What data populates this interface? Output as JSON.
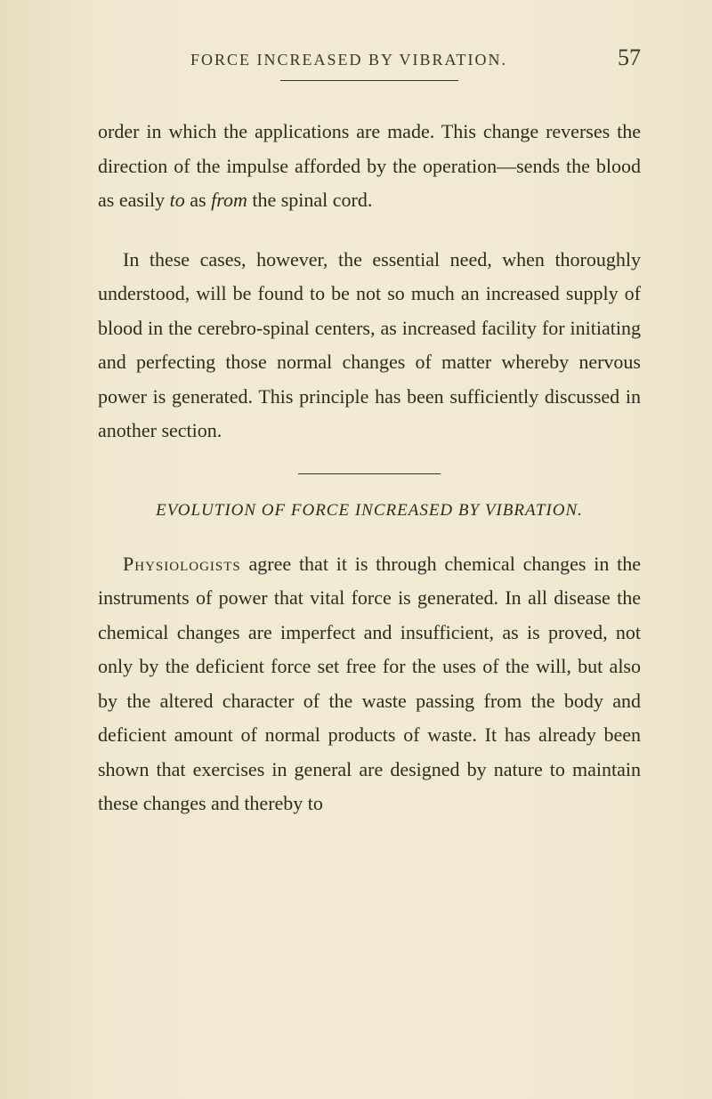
{
  "page": {
    "running_header": "FORCE INCREASED BY VIBRATION.",
    "page_number": "57",
    "paragraph1": "order in which the applications are made. This change reverses the direction of the impulse afforded by the operation—sends the blood as easily ",
    "para1_italic1": "to",
    "para1_mid": " as ",
    "para1_italic2": "from",
    "para1_end": " the spinal cord.",
    "paragraph2": "In these cases, however, the essential need, when thoroughly understood, will be found to be not so much an increased supply of blood in the cerebro-spinal centers, as increased facility for initiating and perfecting those normal changes of matter whereby nervous power is generated. This principle has been sufficiently discussed in another section.",
    "section_title": "EVOLUTION OF FORCE INCREASED BY VIBRATION.",
    "para3_smallcaps": "Physiologists",
    "paragraph3": " agree that it is through chemical changes in the instruments of power that vital force is generated. In all disease the chemical changes are imperfect and insufficient, as is proved, not only by the deficient force set free for the uses of the will, but also by the altered character of the waste passing from the body and deficient amount of normal products of waste. It has already been shown that exercises in general are designed by nature to maintain these changes and thereby to"
  },
  "colors": {
    "background": "#f0e8d0",
    "text": "#2e2a1f",
    "header_text": "#3a3528"
  },
  "typography": {
    "body_fontsize": 22,
    "header_fontsize": 18,
    "pagenum_fontsize": 26,
    "section_title_fontsize": 19,
    "line_height": 1.75
  }
}
